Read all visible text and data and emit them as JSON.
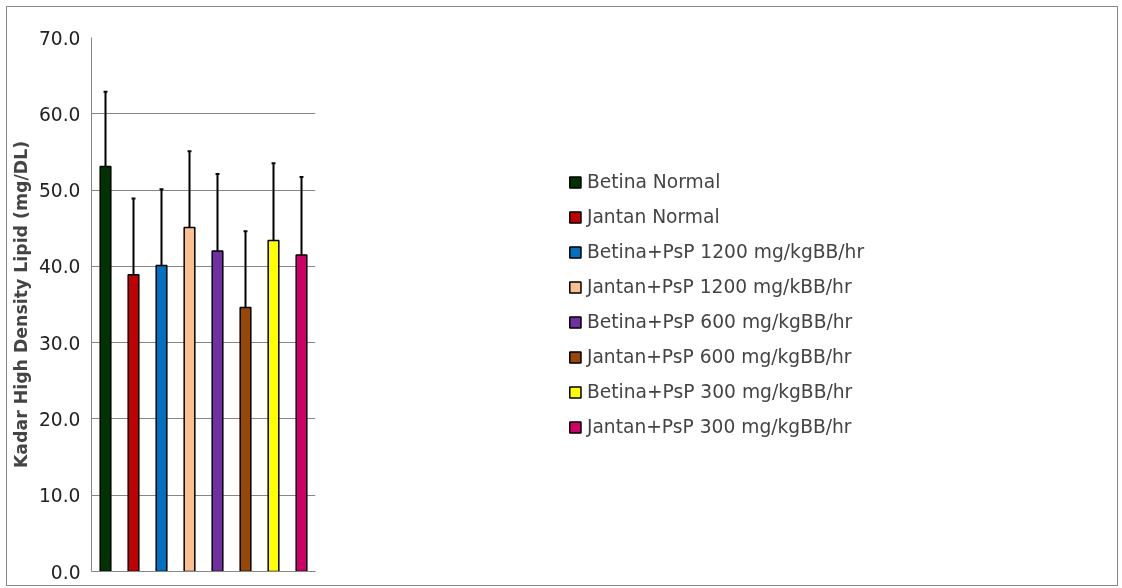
{
  "chart_data": {
    "type": "bar",
    "ylabel": "Kadar High Density Lipid (mg/DL)",
    "categories": [
      null,
      null,
      null,
      null,
      null,
      null,
      null,
      null
    ],
    "series": [
      {
        "name": "Betina Normal",
        "color": "#003300",
        "values": [
          53.1,
          null,
          null,
          null,
          null,
          null,
          null,
          null
        ],
        "errors": [
          [
            53.1,
            62.9
          ],
          null,
          null,
          null,
          null,
          null,
          null,
          null
        ]
      },
      {
        "name": "Jantan Normal",
        "color": "#c00000",
        "values": [
          null,
          38.9,
          null,
          null,
          null,
          null,
          null,
          null
        ],
        "errors": [
          null,
          [
            38.9,
            48.9
          ],
          null,
          null,
          null,
          null,
          null,
          null
        ]
      },
      {
        "name": "Betina+PsP 1200 mg/kgBB/hr",
        "color": "#0070c0",
        "values": [
          null,
          null,
          40.1,
          null,
          null,
          null,
          null,
          null
        ],
        "errors": [
          null,
          null,
          [
            40.1,
            50.1
          ],
          null,
          null,
          null,
          null,
          null
        ]
      },
      {
        "name": "Jantan+PsP 1200 mg/kBB/hr",
        "color": "#fac090",
        "values": [
          null,
          null,
          null,
          45.1,
          null,
          null,
          null,
          null
        ],
        "errors": [
          null,
          null,
          null,
          [
            45.1,
            55.1
          ],
          null,
          null,
          null,
          null
        ]
      },
      {
        "name": "Betina+PsP 600 mg/kgBB/hr",
        "color": "#7030a0",
        "values": [
          null,
          null,
          null,
          null,
          42.0,
          null,
          null,
          null
        ],
        "errors": [
          null,
          null,
          null,
          null,
          [
            42.0,
            52.1
          ],
          null,
          null,
          null
        ]
      },
      {
        "name": "Jantan+PsP 600 mg/kgBB/hr",
        "color": "#974706",
        "values": [
          null,
          null,
          null,
          null,
          null,
          34.6,
          null,
          null
        ],
        "errors": [
          null,
          null,
          null,
          null,
          null,
          [
            34.6,
            44.6
          ],
          null,
          null
        ]
      },
      {
        "name": "Betina+PsP 300 mg/kgBB/hr",
        "color": "#ffff00",
        "values": [
          null,
          null,
          null,
          null,
          null,
          null,
          43.4,
          null
        ],
        "errors": [
          null,
          null,
          null,
          null,
          null,
          null,
          [
            43.4,
            53.5
          ],
          null
        ]
      },
      {
        "name": "Jantan+PsP 300 mg/kgBB/hr",
        "color": "#cc0066",
        "values": [
          null,
          null,
          null,
          null,
          null,
          null,
          null,
          41.5
        ],
        "errors": [
          null,
          null,
          null,
          null,
          null,
          null,
          null,
          [
            41.5,
            51.7
          ]
        ]
      }
    ],
    "ylim": [
      0,
      70
    ],
    "yticks": [
      {
        "value": 0,
        "label": "0.0"
      },
      {
        "value": 10,
        "label": "10.0"
      },
      {
        "value": 20,
        "label": "20.0"
      },
      {
        "value": 30,
        "label": "30.0"
      },
      {
        "value": 40,
        "label": "40.0"
      },
      {
        "value": 50,
        "label": "50.0"
      },
      {
        "value": 60,
        "label": "60.0"
      },
      {
        "value": 70,
        "label": "70.0"
      }
    ],
    "grid": "y",
    "legend": "right",
    "tick_labels": "y"
  }
}
